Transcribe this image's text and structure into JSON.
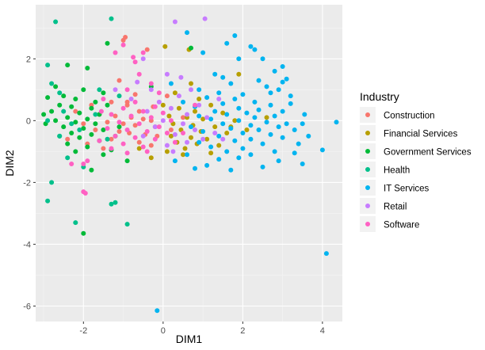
{
  "chart_data": {
    "type": "scatter",
    "title": "",
    "xlabel": "DIM1",
    "ylabel": "DIM2",
    "xlim": [
      -3.2,
      4.5
    ],
    "ylim": [
      -6.5,
      3.75
    ],
    "x_ticks": [
      -2,
      0,
      2,
      4
    ],
    "y_ticks": [
      -6,
      -4,
      -2,
      0,
      2
    ],
    "x_tick_labels": [
      "-2",
      "0",
      "2",
      "4"
    ],
    "y_tick_labels": [
      "-6",
      "-4",
      "-2",
      "0",
      "2"
    ],
    "background": "#EBEBEB",
    "grid": true,
    "grid_color": "#FFFFFF",
    "legend": {
      "title": "Industry",
      "position": "right"
    },
    "series": [
      {
        "name": "Construction",
        "color": "#F8766D",
        "points": [
          [
            -1.0,
            2.6
          ],
          [
            -0.95,
            2.7
          ],
          [
            -0.4,
            2.3
          ],
          [
            -1.1,
            1.3
          ],
          [
            -0.7,
            0.85
          ],
          [
            -1.3,
            0.6
          ],
          [
            -0.9,
            0.5
          ],
          [
            -0.6,
            0.3
          ],
          [
            -1.6,
            0.2
          ],
          [
            -1.2,
            0.15
          ],
          [
            -0.8,
            0.1
          ],
          [
            -0.5,
            0.05
          ],
          [
            -0.3,
            0.0
          ],
          [
            -1.4,
            -0.05
          ],
          [
            -1.0,
            -0.1
          ],
          [
            -0.7,
            -0.15
          ],
          [
            -0.2,
            -0.2
          ],
          [
            -1.7,
            -0.3
          ],
          [
            -1.1,
            -0.35
          ],
          [
            -0.85,
            -0.4
          ],
          [
            -0.45,
            -0.45
          ],
          [
            -0.15,
            -0.5
          ],
          [
            -1.3,
            -0.6
          ],
          [
            -0.6,
            -0.7
          ],
          [
            -1.9,
            -0.75
          ],
          [
            -0.3,
            -0.8
          ],
          [
            0.2,
            -0.3
          ],
          [
            0.5,
            0.1
          ],
          [
            -2.4,
            -0.6
          ],
          [
            -2.2,
            0.3
          ],
          [
            -1.5,
            -0.9
          ],
          [
            -0.9,
            0.6
          ],
          [
            0.1,
            0.8
          ],
          [
            -0.25,
            0.45
          ],
          [
            -1.8,
            0.5
          ],
          [
            -2.0,
            -0.1
          ]
        ]
      },
      {
        "name": "Financial Services",
        "color": "#B79F00",
        "points": [
          [
            0.05,
            2.4
          ],
          [
            0.65,
            2.3
          ],
          [
            0.7,
            1.2
          ],
          [
            0.3,
            0.9
          ],
          [
            0.9,
            0.7
          ],
          [
            1.2,
            0.5
          ],
          [
            0.4,
            0.4
          ],
          [
            0.8,
            0.3
          ],
          [
            1.5,
            0.25
          ],
          [
            0.15,
            0.15
          ],
          [
            0.6,
            0.1
          ],
          [
            1.0,
            0.05
          ],
          [
            1.8,
            0.0
          ],
          [
            0.25,
            -0.1
          ],
          [
            0.75,
            -0.15
          ],
          [
            1.3,
            -0.2
          ],
          [
            0.45,
            -0.3
          ],
          [
            0.95,
            -0.35
          ],
          [
            1.6,
            -0.4
          ],
          [
            0.2,
            -0.5
          ],
          [
            0.7,
            -0.55
          ],
          [
            1.1,
            -0.6
          ],
          [
            0.35,
            -0.7
          ],
          [
            0.85,
            -0.75
          ],
          [
            1.4,
            -0.8
          ],
          [
            0.55,
            -0.9
          ],
          [
            0.1,
            -1.0
          ],
          [
            -0.3,
            -1.2
          ],
          [
            0.5,
            -1.1
          ],
          [
            1.2,
            -1.05
          ],
          [
            1.7,
            -0.2
          ],
          [
            2.1,
            -0.3
          ],
          [
            1.9,
            1.5
          ],
          [
            -0.6,
            -0.9
          ],
          [
            0.0,
            0.5
          ],
          [
            2.6,
            0.1
          ]
        ]
      },
      {
        "name": "Government Services",
        "color": "#00BA38",
        "points": [
          [
            -1.4,
            2.5
          ],
          [
            0.7,
            2.35
          ],
          [
            -2.4,
            1.8
          ],
          [
            -1.9,
            1.7
          ],
          [
            -2.7,
            1.1
          ],
          [
            -2.0,
            1.0
          ],
          [
            -1.5,
            0.9
          ],
          [
            -2.5,
            0.8
          ],
          [
            -2.9,
            0.75
          ],
          [
            -2.2,
            0.7
          ],
          [
            -1.7,
            0.6
          ],
          [
            -2.6,
            0.5
          ],
          [
            -2.3,
            0.45
          ],
          [
            -1.8,
            0.4
          ],
          [
            -2.8,
            0.3
          ],
          [
            -2.1,
            0.25
          ],
          [
            -1.6,
            0.2
          ],
          [
            -2.4,
            0.1
          ],
          [
            -1.9,
            0.05
          ],
          [
            -2.7,
            0.0
          ],
          [
            -2.2,
            -0.05
          ],
          [
            -1.7,
            -0.1
          ],
          [
            -2.5,
            -0.2
          ],
          [
            -2.0,
            -0.25
          ],
          [
            -1.5,
            -0.3
          ],
          [
            -2.3,
            -0.4
          ],
          [
            -1.8,
            -0.45
          ],
          [
            -2.6,
            -0.5
          ],
          [
            -2.1,
            -0.55
          ],
          [
            -1.6,
            -0.65
          ],
          [
            -2.4,
            -0.75
          ],
          [
            -1.9,
            -0.85
          ],
          [
            -1.3,
            -0.95
          ],
          [
            -2.2,
            -1.0
          ],
          [
            -1.5,
            -1.1
          ],
          [
            -1.8,
            -1.6
          ],
          [
            -2.0,
            -3.65
          ],
          [
            -1.2,
            -0.5
          ],
          [
            -1.4,
            0.5
          ],
          [
            -1.1,
            -0.2
          ],
          [
            -3.0,
            0.2
          ],
          [
            -2.95,
            -0.1
          ],
          [
            -0.9,
            -1.3
          ],
          [
            -0.3,
            1.1
          ]
        ]
      },
      {
        "name": "Health",
        "color": "#00C08B",
        "points": [
          [
            -2.7,
            3.2
          ],
          [
            -1.3,
            3.3
          ],
          [
            -2.9,
            1.8
          ],
          [
            -2.8,
            1.2
          ],
          [
            -2.6,
            0.9
          ],
          [
            -2.5,
            0.3
          ],
          [
            -2.3,
            -0.1
          ],
          [
            -2.6,
            -0.5
          ],
          [
            -2.0,
            -1.5
          ],
          [
            -2.8,
            -2.0
          ],
          [
            -2.9,
            -2.6
          ],
          [
            -1.3,
            -2.7
          ],
          [
            -1.2,
            -2.65
          ],
          [
            -2.2,
            -3.3
          ],
          [
            -0.9,
            -3.35
          ],
          [
            -2.4,
            -1.2
          ],
          [
            -1.6,
            1.0
          ],
          [
            -1.1,
            0.8
          ],
          [
            -2.1,
            -0.3
          ],
          [
            -1.7,
            0.2
          ],
          [
            -1.4,
            -0.6
          ],
          [
            -2.9,
            0.0
          ]
        ]
      },
      {
        "name": "IT Services",
        "color": "#00B4F0",
        "points": [
          [
            0.6,
            2.85
          ],
          [
            1.8,
            2.75
          ],
          [
            1.6,
            2.5
          ],
          [
            2.2,
            2.4
          ],
          [
            2.3,
            2.3
          ],
          [
            2.5,
            2.0
          ],
          [
            1.9,
            2.0
          ],
          [
            3.0,
            1.75
          ],
          [
            2.8,
            1.6
          ],
          [
            3.1,
            1.35
          ],
          [
            3.0,
            1.25
          ],
          [
            1.3,
            1.5
          ],
          [
            1.5,
            1.4
          ],
          [
            2.4,
            1.3
          ],
          [
            1.7,
            1.2
          ],
          [
            2.6,
            1.1
          ],
          [
            2.9,
            1.0
          ],
          [
            0.9,
            1.0
          ],
          [
            1.4,
            0.9
          ],
          [
            2.0,
            0.85
          ],
          [
            3.2,
            0.8
          ],
          [
            1.1,
            0.75
          ],
          [
            1.8,
            0.7
          ],
          [
            2.3,
            0.6
          ],
          [
            3.2,
            0.55
          ],
          [
            1.5,
            0.55
          ],
          [
            2.7,
            0.5
          ],
          [
            0.8,
            0.45
          ],
          [
            1.9,
            0.4
          ],
          [
            2.4,
            0.35
          ],
          [
            3.0,
            0.3
          ],
          [
            1.3,
            0.3
          ],
          [
            2.1,
            0.25
          ],
          [
            1.6,
            0.2
          ],
          [
            2.8,
            0.15
          ],
          [
            0.9,
            0.15
          ],
          [
            2.3,
            0.1
          ],
          [
            1.2,
            0.05
          ],
          [
            1.9,
            0.0
          ],
          [
            2.6,
            -0.05
          ],
          [
            3.1,
            -0.1
          ],
          [
            3.5,
            -0.1
          ],
          [
            4.35,
            -0.05
          ],
          [
            1.5,
            -0.1
          ],
          [
            2.2,
            -0.15
          ],
          [
            0.7,
            -0.2
          ],
          [
            2.9,
            -0.2
          ],
          [
            1.7,
            -0.25
          ],
          [
            2.4,
            -0.3
          ],
          [
            3.3,
            -0.3
          ],
          [
            1.0,
            -0.35
          ],
          [
            2.0,
            -0.4
          ],
          [
            2.7,
            -0.45
          ],
          [
            1.4,
            -0.5
          ],
          [
            3.0,
            -0.55
          ],
          [
            2.2,
            -0.6
          ],
          [
            1.8,
            -0.65
          ],
          [
            0.9,
            -0.7
          ],
          [
            2.5,
            -0.75
          ],
          [
            3.4,
            -0.75
          ],
          [
            1.2,
            -0.85
          ],
          [
            2.0,
            -0.9
          ],
          [
            3.65,
            -0.5
          ],
          [
            4.0,
            -0.95
          ],
          [
            1.6,
            -1.0
          ],
          [
            2.8,
            -1.0
          ],
          [
            3.3,
            -1.05
          ],
          [
            0.6,
            -1.1
          ],
          [
            2.2,
            -1.1
          ],
          [
            1.4,
            -1.25
          ],
          [
            0.3,
            -1.3
          ],
          [
            1.9,
            -1.2
          ],
          [
            2.9,
            -1.3
          ],
          [
            3.5,
            -1.4
          ],
          [
            1.1,
            -1.45
          ],
          [
            2.5,
            -1.5
          ],
          [
            1.7,
            -1.6
          ],
          [
            0.8,
            -1.55
          ],
          [
            4.1,
            -4.3
          ],
          [
            -0.15,
            -6.15
          ],
          [
            0.2,
            1.2
          ],
          [
            0.5,
            0.6
          ],
          [
            1.0,
            2.2
          ],
          [
            2.7,
            0.9
          ],
          [
            3.55,
            0.2
          ]
        ]
      },
      {
        "name": "Retail",
        "color": "#C77CFF",
        "points": [
          [
            0.3,
            3.2
          ],
          [
            1.05,
            3.3
          ],
          [
            -0.5,
            2.0
          ],
          [
            0.1,
            1.5
          ],
          [
            0.7,
            1.0
          ],
          [
            -0.3,
            1.0
          ],
          [
            0.4,
            0.8
          ],
          [
            -0.1,
            0.6
          ],
          [
            0.9,
            0.5
          ],
          [
            0.2,
            0.4
          ],
          [
            -0.4,
            0.3
          ],
          [
            0.6,
            0.2
          ],
          [
            1.1,
            0.1
          ],
          [
            0.0,
            0.0
          ],
          [
            0.5,
            -0.1
          ],
          [
            -0.2,
            -0.2
          ],
          [
            0.8,
            -0.3
          ],
          [
            1.3,
            -0.4
          ],
          [
            0.3,
            -0.45
          ],
          [
            -0.5,
            -0.5
          ],
          [
            1.0,
            -0.6
          ],
          [
            0.6,
            -0.7
          ],
          [
            0.1,
            -0.8
          ],
          [
            1.5,
            -0.6
          ],
          [
            -0.8,
            0.7
          ],
          [
            -1.2,
            1.0
          ],
          [
            0.45,
            1.4
          ],
          [
            -0.65,
            1.25
          ],
          [
            1.4,
            0.7
          ],
          [
            0.25,
            -1.0
          ]
        ]
      },
      {
        "name": "Software",
        "color": "#FF61C3",
        "points": [
          [
            -1.0,
            2.45
          ],
          [
            -0.5,
            2.2
          ],
          [
            -1.2,
            2.2
          ],
          [
            -0.7,
            1.9
          ],
          [
            -0.6,
            1.5
          ],
          [
            -0.3,
            1.2
          ],
          [
            -0.9,
            1.0
          ],
          [
            -0.1,
            0.9
          ],
          [
            -1.5,
            0.7
          ],
          [
            -0.7,
            0.6
          ],
          [
            -0.2,
            0.45
          ],
          [
            -1.0,
            0.4
          ],
          [
            -0.5,
            0.3
          ],
          [
            0.0,
            0.25
          ],
          [
            -1.3,
            0.2
          ],
          [
            -0.8,
            0.15
          ],
          [
            -0.3,
            0.1
          ],
          [
            0.2,
            0.0
          ],
          [
            -1.1,
            -0.05
          ],
          [
            -0.6,
            -0.1
          ],
          [
            -0.1,
            -0.2
          ],
          [
            -1.4,
            -0.25
          ],
          [
            -0.9,
            -0.3
          ],
          [
            -0.4,
            -0.35
          ],
          [
            0.1,
            -0.4
          ],
          [
            -1.2,
            -0.5
          ],
          [
            -0.7,
            -0.55
          ],
          [
            -0.2,
            -0.6
          ],
          [
            -1.6,
            -0.65
          ],
          [
            -1.0,
            -0.75
          ],
          [
            -0.5,
            -0.85
          ],
          [
            0.3,
            -0.7
          ],
          [
            -2.0,
            -1.4
          ],
          [
            -2.3,
            -1.4
          ],
          [
            -1.9,
            -1.3
          ],
          [
            -2.0,
            -2.3
          ],
          [
            -1.95,
            -2.35
          ],
          [
            -0.9,
            -1.05
          ],
          [
            -1.3,
            -0.9
          ],
          [
            -1.55,
            0.3
          ],
          [
            0.8,
            0.5
          ],
          [
            0.5,
            -0.4
          ],
          [
            -0.75,
            2.05
          ],
          [
            -0.4,
            -1.0
          ]
        ]
      }
    ]
  }
}
